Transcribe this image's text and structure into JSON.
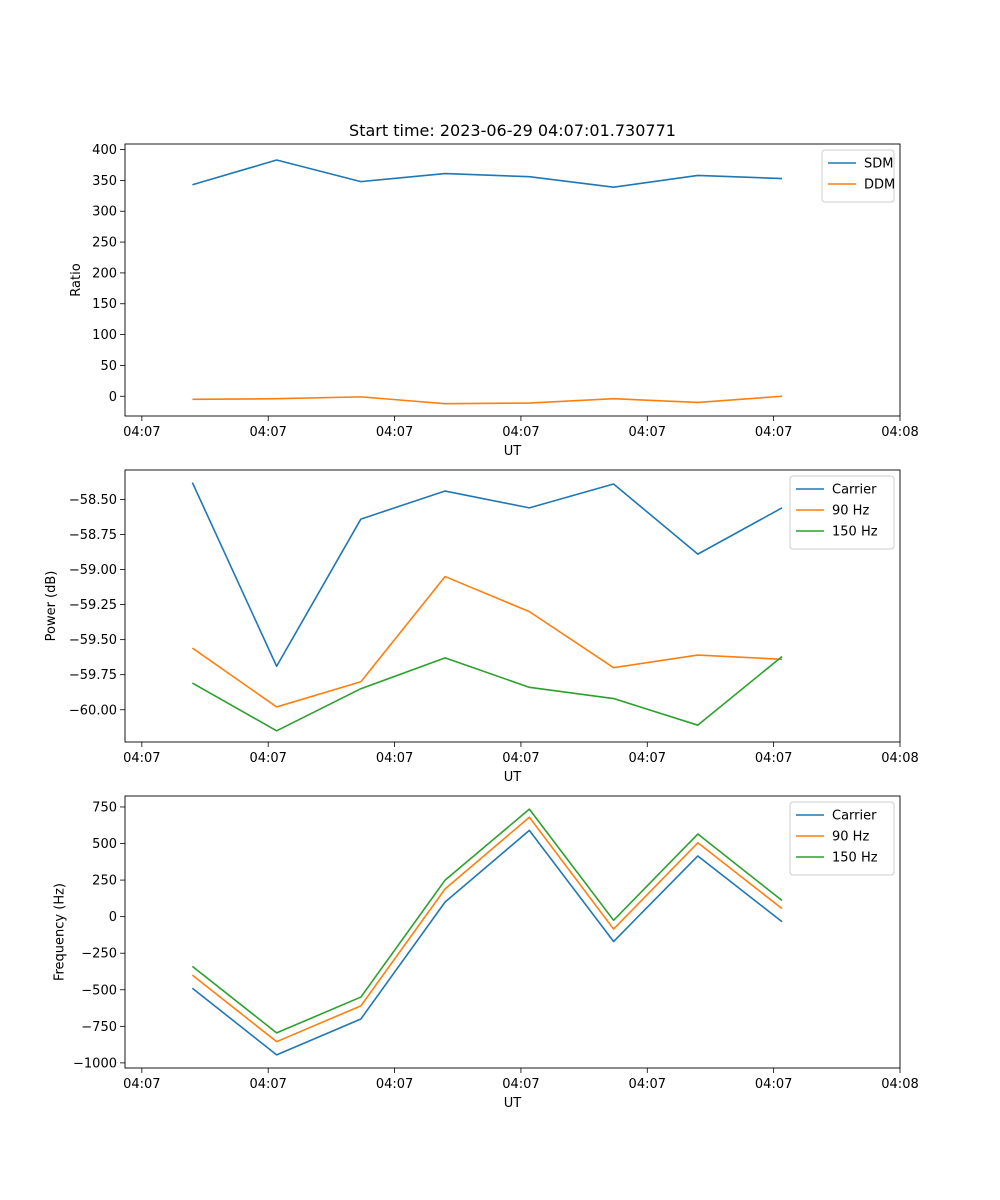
{
  "figure_title": "Start time: 2023-06-29 04:07:01.730771",
  "x_tick_labels": [
    "04:07",
    "04:07",
    "04:07",
    "04:07",
    "04:07",
    "04:07",
    "04:08"
  ],
  "chart_data": [
    {
      "type": "line",
      "xlabel": "UT",
      "ylabel": "Ratio",
      "ylim": [
        -32,
        409
      ],
      "y_ticks": [
        0,
        50,
        100,
        150,
        200,
        250,
        300,
        350,
        400
      ],
      "y_tick_labels": [
        "0",
        "50",
        "100",
        "150",
        "200",
        "250",
        "300",
        "350",
        "400"
      ],
      "grid": false,
      "legend_position": "top-right",
      "x": [
        1,
        2,
        3,
        4,
        5,
        6,
        7,
        8
      ],
      "series": [
        {
          "name": "SDM",
          "color": "#1f77b4",
          "values": [
            343,
            383,
            348,
            361,
            356,
            339,
            358,
            353
          ]
        },
        {
          "name": "DDM",
          "color": "#ff7f0e",
          "values": [
            -5,
            -4,
            -1,
            -12,
            -11,
            -4,
            -10,
            0
          ]
        }
      ]
    },
    {
      "type": "line",
      "xlabel": "UT",
      "ylabel": "Power (dB)",
      "ylim": [
        -60.23,
        -58.29
      ],
      "y_ticks": [
        -60.0,
        -59.75,
        -59.5,
        -59.25,
        -59.0,
        -58.75,
        -58.5
      ],
      "y_tick_labels": [
        "−60.00",
        "−59.75",
        "−59.50",
        "−59.25",
        "−59.00",
        "−58.75",
        "−58.50"
      ],
      "grid": false,
      "legend_position": "top-right",
      "x": [
        1,
        2,
        3,
        4,
        5,
        6,
        7,
        8
      ],
      "series": [
        {
          "name": "Carrier",
          "color": "#1f77b4",
          "values": [
            -58.38,
            -59.69,
            -58.64,
            -58.44,
            -58.56,
            -58.39,
            -58.89,
            -58.56
          ]
        },
        {
          "name": "90 Hz",
          "color": "#ff7f0e",
          "values": [
            -59.56,
            -59.98,
            -59.8,
            -59.05,
            -59.3,
            -59.7,
            -59.61,
            -59.64
          ]
        },
        {
          "name": "150 Hz",
          "color": "#2ca02c",
          "values": [
            -59.81,
            -60.15,
            -59.85,
            -59.63,
            -59.84,
            -59.92,
            -60.11,
            -59.62
          ]
        }
      ]
    },
    {
      "type": "line",
      "xlabel": "UT",
      "ylabel": "Frequency (Hz)",
      "ylim": [
        -1035,
        825
      ],
      "y_ticks": [
        -1000,
        -750,
        -500,
        -250,
        0,
        250,
        500,
        750
      ],
      "y_tick_labels": [
        "−1000",
        "−750",
        "−500",
        "−250",
        "0",
        "250",
        "500",
        "750"
      ],
      "grid": false,
      "legend_position": "top-right",
      "x": [
        1,
        2,
        3,
        4,
        5,
        6,
        7,
        8
      ],
      "series": [
        {
          "name": "Carrier",
          "color": "#1f77b4",
          "values": [
            -490,
            -945,
            -700,
            100,
            590,
            -170,
            415,
            -35
          ]
        },
        {
          "name": "90 Hz",
          "color": "#ff7f0e",
          "values": [
            -400,
            -855,
            -610,
            190,
            680,
            -85,
            505,
            55
          ]
        },
        {
          "name": "150 Hz",
          "color": "#2ca02c",
          "values": [
            -340,
            -795,
            -550,
            250,
            735,
            -25,
            565,
            110
          ]
        }
      ]
    }
  ]
}
